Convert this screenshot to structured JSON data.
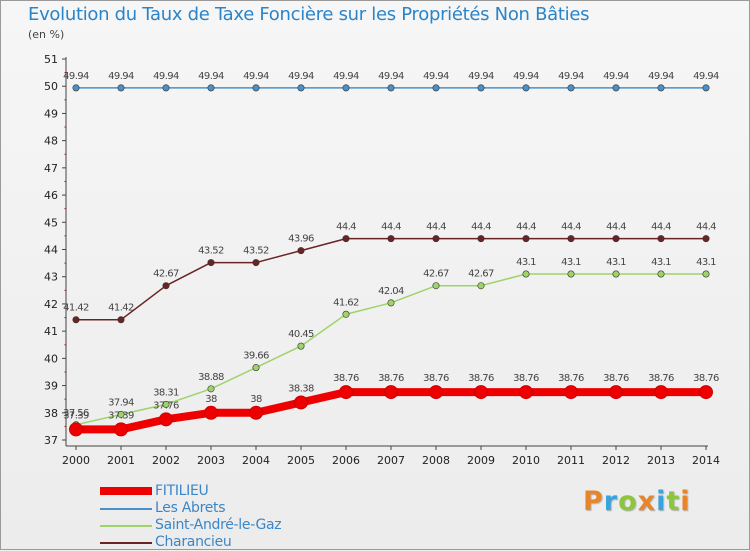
{
  "title": "Evolution du Taux de Taxe Foncière sur les Propriétés Non Bâties",
  "subtitle": "(en %)",
  "chart_data": {
    "type": "line",
    "title": "Evolution du Taux de Taxe Foncière sur les Propriétés Non Bâties",
    "ylabel": "(en %)",
    "xlabel": "",
    "x": [
      "2000",
      "2001",
      "2002",
      "2003",
      "2004",
      "2005",
      "2006",
      "2007",
      "2008",
      "2009",
      "2010",
      "2011",
      "2012",
      "2013",
      "2014"
    ],
    "ylim": [
      37,
      51
    ],
    "yticks": [
      "37",
      "38",
      "39",
      "40",
      "41",
      "42",
      "43",
      "44",
      "45",
      "46",
      "47",
      "48",
      "49",
      "50",
      "51"
    ],
    "grid": false,
    "legend_position": "bottom-left",
    "series": [
      {
        "name": "Les Abrets",
        "color": "#4a90c8",
        "width": "thin",
        "values": [
          49.94,
          49.94,
          49.94,
          49.94,
          49.94,
          49.94,
          49.94,
          49.94,
          49.94,
          49.94,
          49.94,
          49.94,
          49.94,
          49.94,
          49.94
        ],
        "labels": [
          "49.94",
          "49.94",
          "49.94",
          "49.94",
          "49.94",
          "49.94",
          "49.94",
          "49.94",
          "49.94",
          "49.94",
          "49.94",
          "49.94",
          "49.94",
          "49.94",
          "49.94"
        ]
      },
      {
        "name": "Charancieu",
        "color": "#6b2424",
        "width": "thin",
        "values": [
          41.42,
          41.42,
          42.67,
          43.52,
          43.52,
          43.96,
          44.4,
          44.4,
          44.4,
          44.4,
          44.4,
          44.4,
          44.4,
          44.4,
          44.4
        ],
        "labels": [
          "41.42",
          "41.42",
          "42.67",
          "43.52",
          "43.52",
          "43.96",
          "44.4",
          "44.4",
          "44.4",
          "44.4",
          "44.4",
          "44.4",
          "44.4",
          "44.4",
          "44.4"
        ]
      },
      {
        "name": "Saint-André-le-Gaz",
        "color": "#9ed36a",
        "width": "thin",
        "values": [
          37.56,
          37.94,
          38.31,
          38.88,
          39.66,
          40.45,
          41.62,
          42.04,
          42.67,
          42.67,
          43.1,
          43.1,
          43.1,
          43.1,
          43.1
        ],
        "labels": [
          "37.56",
          "37.94",
          "38.31",
          "38.88",
          "39.66",
          "40.45",
          "41.62",
          "42.04",
          "42.67",
          "42.67",
          "43.1",
          "43.1",
          "43.1",
          "43.1",
          "43.1"
        ]
      },
      {
        "name": "FITILIEU",
        "color": "#ee0000",
        "width": "thick",
        "values": [
          37.39,
          37.39,
          37.76,
          38,
          38,
          38.38,
          38.76,
          38.76,
          38.76,
          38.76,
          38.76,
          38.76,
          38.76,
          38.76,
          38.76
        ],
        "labels": [
          "37.39",
          "37.39",
          "37.76",
          "38",
          "38",
          "38.38",
          "38.76",
          "38.76",
          "38.76",
          "38.76",
          "38.76",
          "38.76",
          "38.76",
          "38.76",
          "38.76"
        ]
      }
    ]
  },
  "legend": [
    {
      "label": "FITILIEU",
      "color": "#ee0000"
    },
    {
      "label": "Les Abrets",
      "color": "#4a90c8"
    },
    {
      "label": "Saint-André-le-Gaz",
      "color": "#9ed36a"
    },
    {
      "label": "Charancieu",
      "color": "#6b2424"
    }
  ],
  "logo": {
    "letters": [
      "P",
      "r",
      "o",
      "x",
      "i",
      "t",
      "i"
    ],
    "colors": [
      "#e8842a",
      "#3ba3dc",
      "#8cc63e"
    ]
  }
}
